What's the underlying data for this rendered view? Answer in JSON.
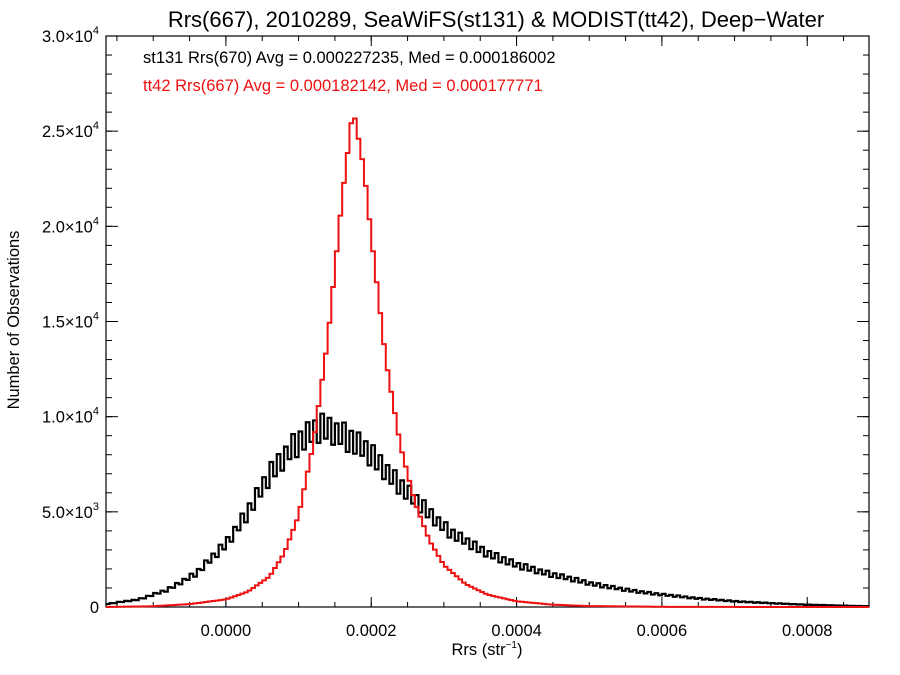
{
  "chart_data": {
    "type": "line",
    "title": "Rrs(667), 2010289, SeaWiFS(st131) & MODIST(tt42), Deep−Water",
    "xlabel": "Rrs (str",
    "xlabel_sup": "−1",
    "xlabel_close": ")",
    "ylabel": "Number of Observations",
    "xlim": [
      -0.000165,
      0.000885
    ],
    "ylim": [
      0,
      30000
    ],
    "x_ticks": [
      {
        "value": 0.0,
        "label": "0.0000"
      },
      {
        "value": 0.0002,
        "label": "0.0002"
      },
      {
        "value": 0.0004,
        "label": "0.0004"
      },
      {
        "value": 0.0006,
        "label": "0.0006"
      },
      {
        "value": 0.0008,
        "label": "0.0008"
      }
    ],
    "y_ticks": [
      {
        "value": 0,
        "mant": "0",
        "exp": ""
      },
      {
        "value": 5000,
        "mant": "5.0×10",
        "exp": "3"
      },
      {
        "value": 10000,
        "mant": "1.0×10",
        "exp": "4"
      },
      {
        "value": 15000,
        "mant": "1.5×10",
        "exp": "4"
      },
      {
        "value": 20000,
        "mant": "2.0×10",
        "exp": "4"
      },
      {
        "value": 25000,
        "mant": "2.5×10",
        "exp": "4"
      },
      {
        "value": 30000,
        "mant": "3.0×10",
        "exp": "4"
      }
    ],
    "grid": false,
    "legend_position": "top-left",
    "series": [
      {
        "name": "st131 Rrs(670) Avg = 0.000227235, Med = 0.000186002",
        "color": "#000000",
        "stats": {
          "avg": 0.000227235,
          "median": 0.000186002
        },
        "style": "step-jagged",
        "peak_x": 0.000135,
        "peak_y": 9400,
        "x_start": -0.000165,
        "x_end": 0.000885,
        "points": [
          [
            -0.000165,
            150
          ],
          [
            -0.00012,
            400
          ],
          [
            -8e-05,
            900
          ],
          [
            -4e-05,
            1800
          ],
          [
            0.0,
            3300
          ],
          [
            3e-05,
            5000
          ],
          [
            6e-05,
            6900
          ],
          [
            9e-05,
            8400
          ],
          [
            0.00012,
            9200
          ],
          [
            0.000135,
            9400
          ],
          [
            0.00016,
            9100
          ],
          [
            0.00019,
            8300
          ],
          [
            0.00022,
            7200
          ],
          [
            0.00025,
            6000
          ],
          [
            0.00028,
            4900
          ],
          [
            0.00031,
            3900
          ],
          [
            0.00035,
            3000
          ],
          [
            0.0004,
            2200
          ],
          [
            0.00045,
            1700
          ],
          [
            0.0005,
            1250
          ],
          [
            0.00055,
            900
          ],
          [
            0.0006,
            650
          ],
          [
            0.00065,
            450
          ],
          [
            0.0007,
            300
          ],
          [
            0.00075,
            200
          ],
          [
            0.0008,
            120
          ],
          [
            0.00085,
            70
          ],
          [
            0.000885,
            40
          ]
        ]
      },
      {
        "name": "tt42 Rrs(667) Avg = 0.000182142, Med = 0.000177771",
        "color": "#ee1111",
        "stats": {
          "avg": 0.000182142,
          "median": 0.000177771
        },
        "style": "step",
        "peak_x": 0.000175,
        "peak_y": 26200,
        "x_start": -0.000165,
        "x_end": 0.000885,
        "points": [
          [
            -0.000165,
            0
          ],
          [
            -0.0001,
            40
          ],
          [
            -5e-05,
            150
          ],
          [
            0.0,
            400
          ],
          [
            3e-05,
            800
          ],
          [
            6e-05,
            1600
          ],
          [
            8e-05,
            2800
          ],
          [
            0.0001,
            4800
          ],
          [
            0.00012,
            8500
          ],
          [
            0.00014,
            14000
          ],
          [
            0.00016,
            21500
          ],
          [
            0.000175,
            26200
          ],
          [
            0.00019,
            23000
          ],
          [
            0.0002,
            19500
          ],
          [
            0.00022,
            13000
          ],
          [
            0.00024,
            8500
          ],
          [
            0.00026,
            5500
          ],
          [
            0.00028,
            3500
          ],
          [
            0.0003,
            2200
          ],
          [
            0.00033,
            1200
          ],
          [
            0.00036,
            650
          ],
          [
            0.0004,
            300
          ],
          [
            0.00045,
            120
          ],
          [
            0.0005,
            50
          ],
          [
            0.0006,
            10
          ],
          [
            0.00075,
            0
          ],
          [
            0.000885,
            0
          ]
        ]
      }
    ]
  }
}
